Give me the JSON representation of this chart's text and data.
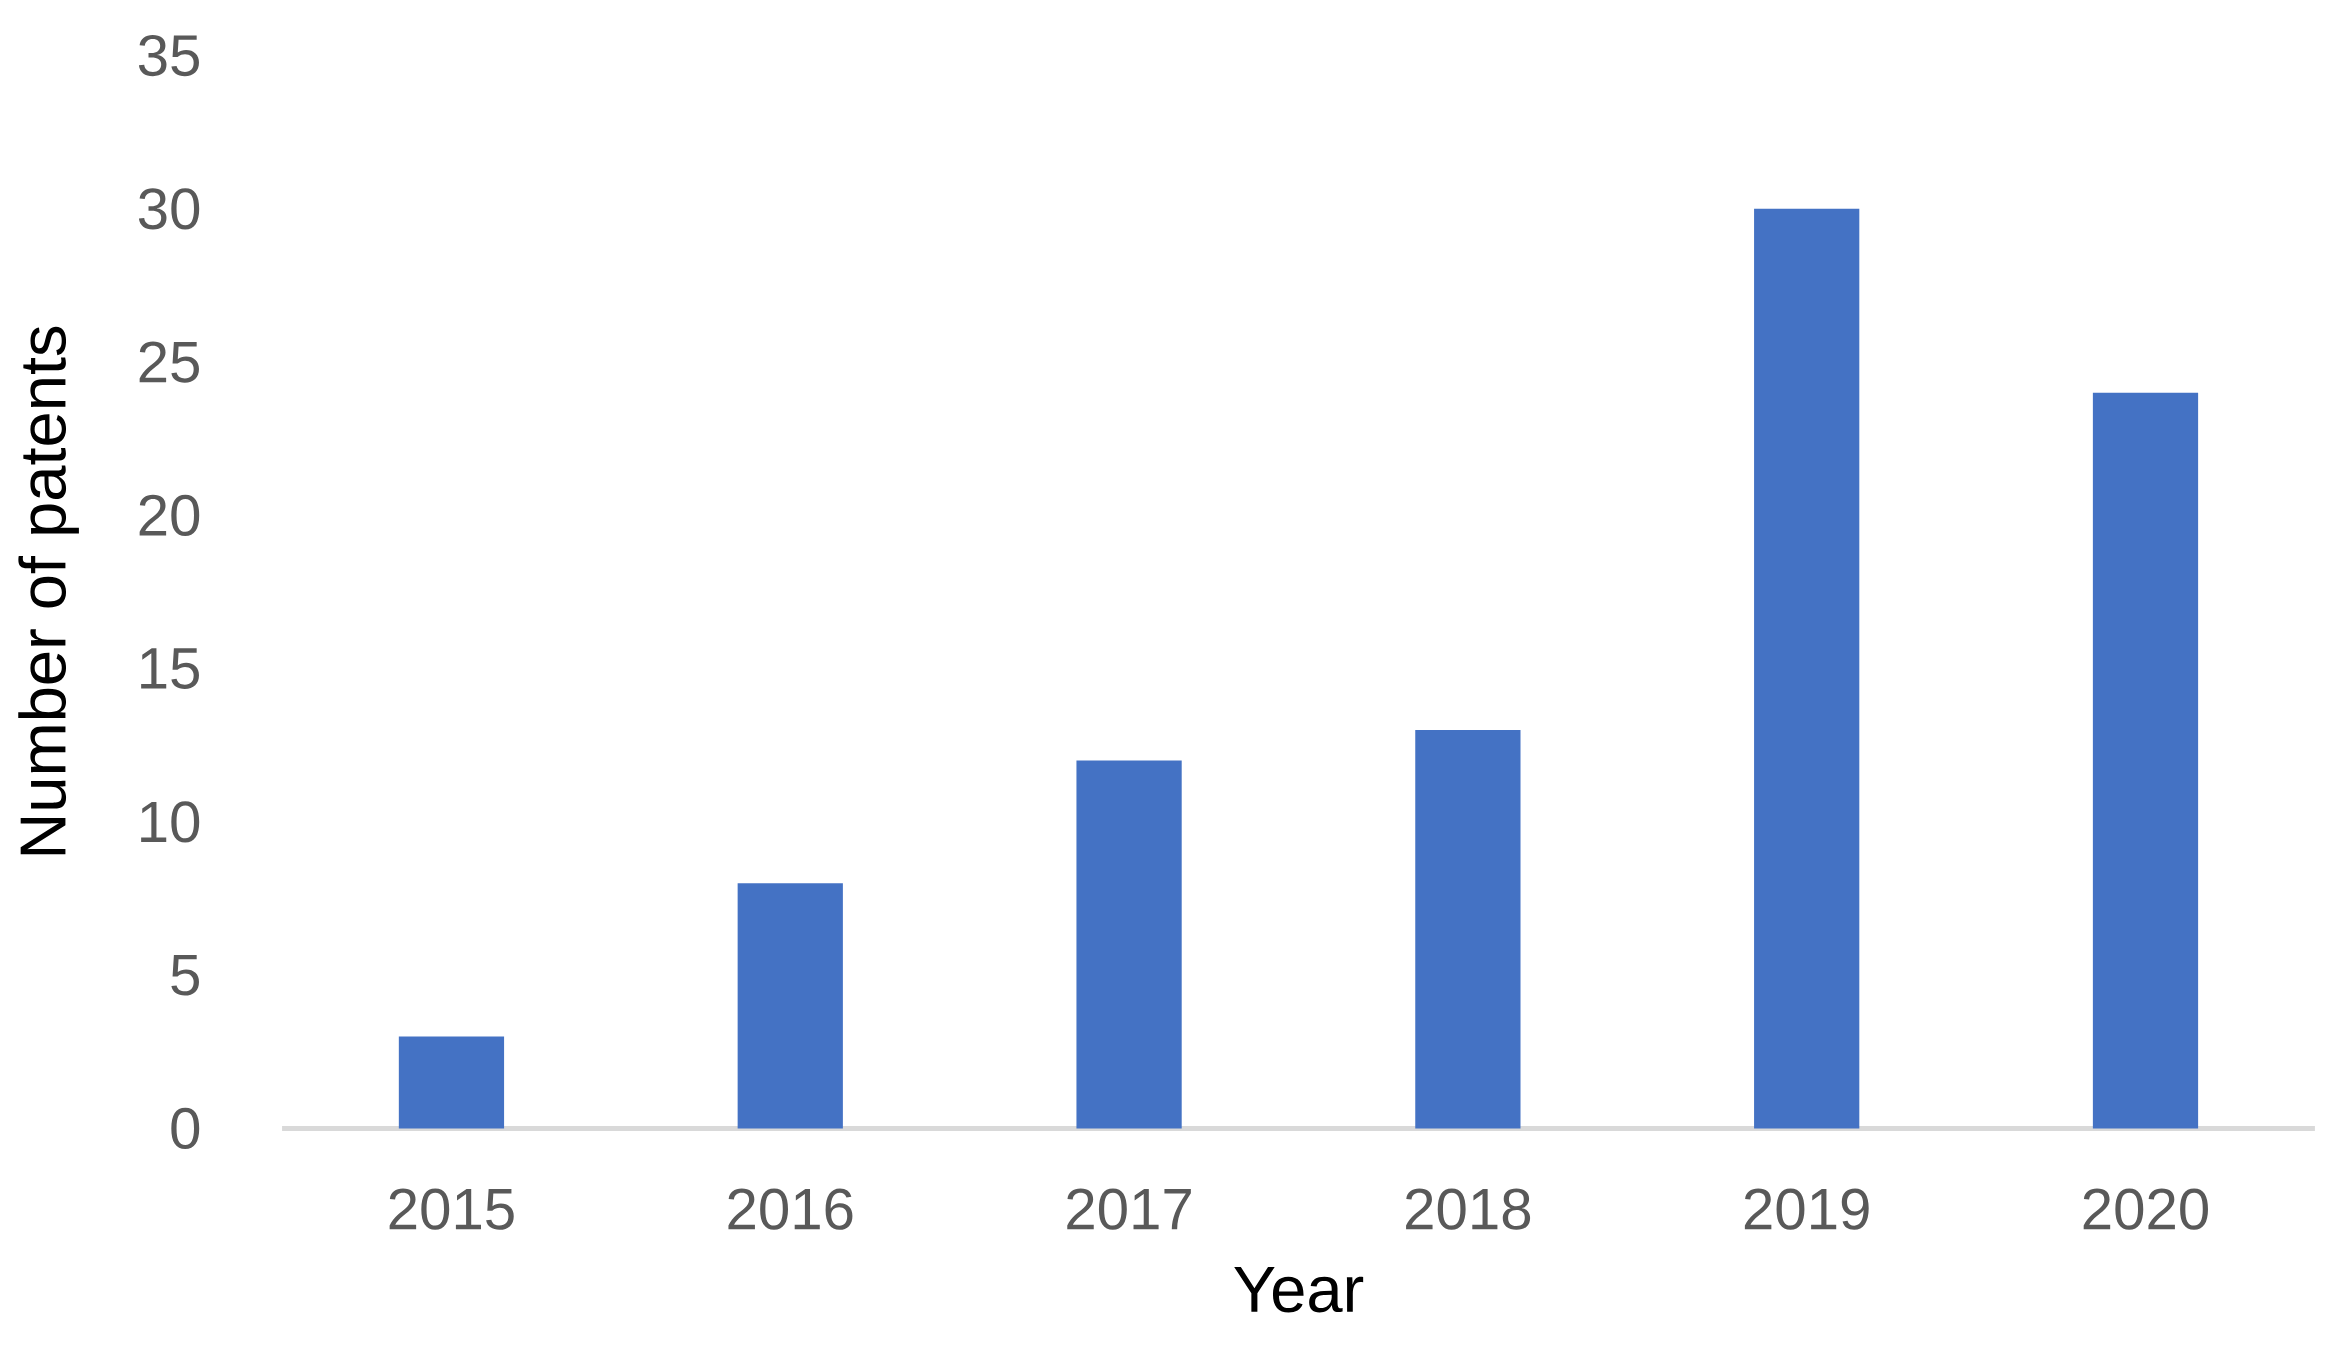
{
  "chart_data": {
    "type": "bar",
    "xlabel": "Year",
    "ylabel": "Number of patents",
    "categories": [
      "2015",
      "2016",
      "2017",
      "2018",
      "2019",
      "2020"
    ],
    "values": [
      3,
      8,
      12,
      13,
      30,
      24
    ],
    "color": "#4472c4",
    "ylim": [
      0,
      35
    ],
    "yticks": [
      0,
      5,
      10,
      15,
      20,
      25,
      30,
      35
    ],
    "grid": false
  }
}
